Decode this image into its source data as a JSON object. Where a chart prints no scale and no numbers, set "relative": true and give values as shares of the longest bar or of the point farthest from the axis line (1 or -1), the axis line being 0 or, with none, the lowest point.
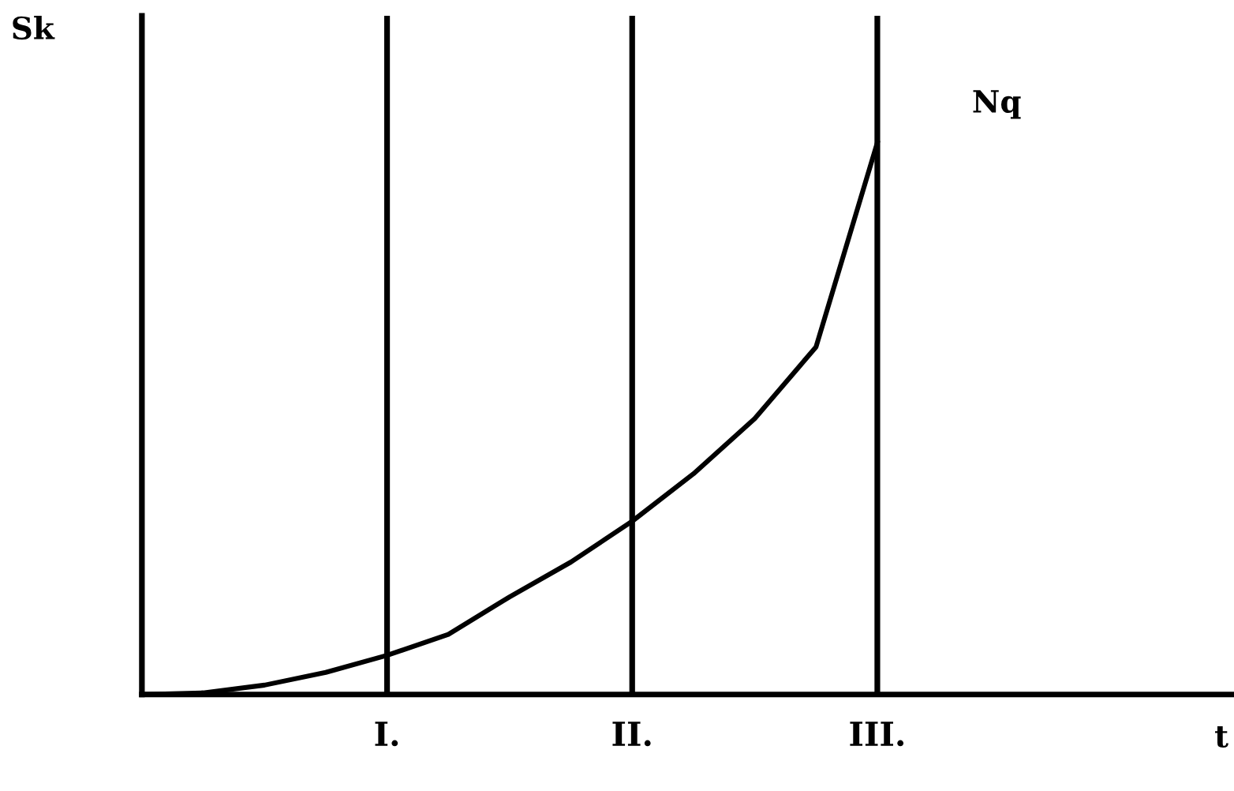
{
  "chart_data": {
    "type": "line",
    "relative": true,
    "ylabel": "Sk",
    "categories": [
      null,
      null,
      null,
      null,
      "I.",
      null,
      null,
      null,
      "II.",
      null,
      null,
      null,
      "III."
    ],
    "series": [
      {
        "color": "#000000",
        "values": [
          0,
          0.003,
          0.017,
          0.04,
          0.071,
          0.109,
          0.177,
          0.24,
          0.314,
          0.4,
          0.5,
          0.63,
          1.0
        ]
      }
    ],
    "annotations": [
      "Nq",
      "t"
    ],
    "tick_labels": "x",
    "grid": "x",
    "legend": false,
    "marker": "none",
    "line_style": "solid"
  }
}
